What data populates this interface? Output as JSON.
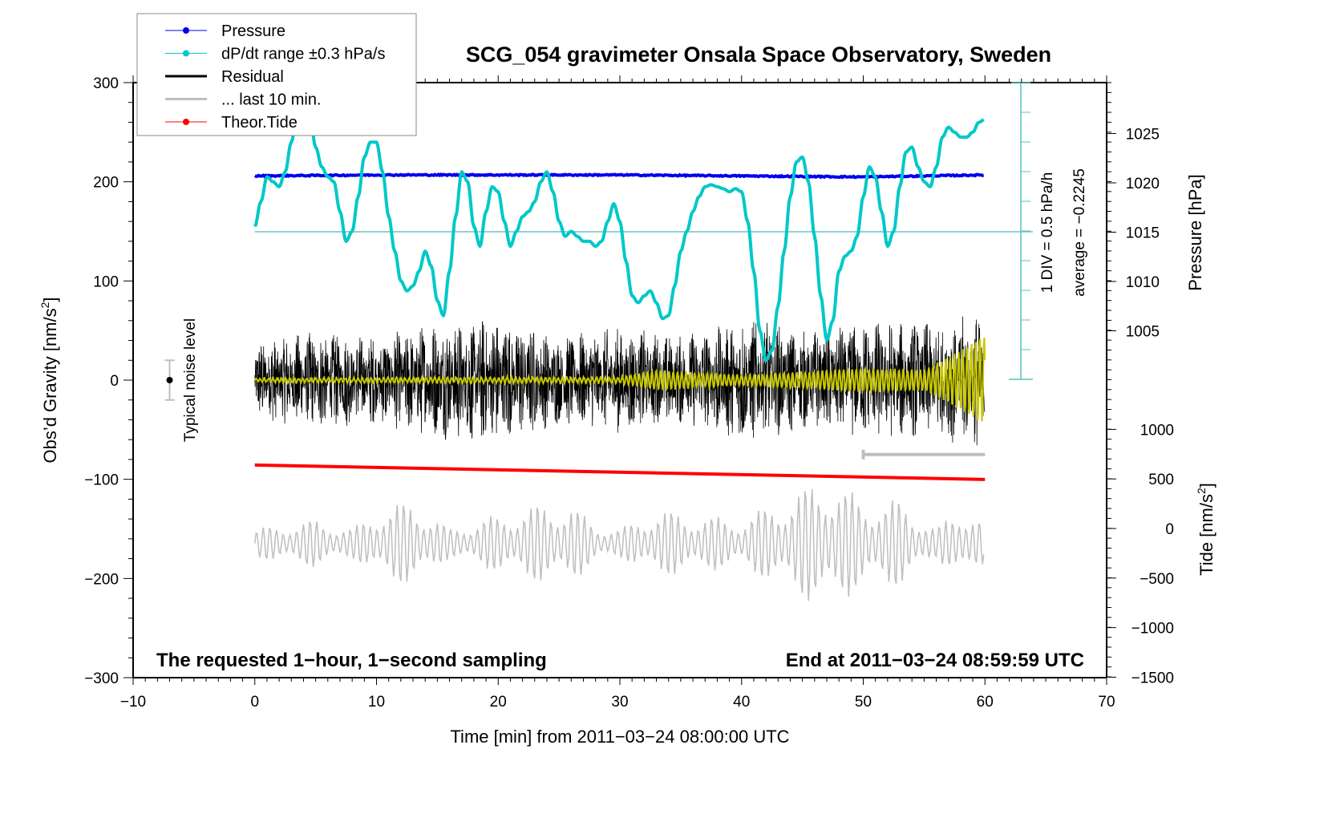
{
  "chart_data": {
    "type": "line",
    "title": "SCG_054 gravimeter Onsala Space Observatory, Sweden",
    "xlabel": "Time [min] from 2011−03−24 08:00:00 UTC",
    "xlim": [
      -10,
      70
    ],
    "x_ticks": [
      -10,
      0,
      10,
      20,
      30,
      40,
      50,
      60,
      70
    ],
    "x_tick_labels": [
      "−10",
      "0",
      "10",
      "20",
      "30",
      "40",
      "50",
      "60",
      "70"
    ],
    "left_axis": {
      "label": "Obs’d Gravity [nm/s",
      "label_sup": "2",
      "label_end": "]",
      "ylim": [
        -300,
        300
      ],
      "ticks": [
        300,
        200,
        100,
        0,
        -100,
        -200,
        -300
      ],
      "tick_labels": [
        "300",
        "200",
        "100",
        "0",
        "−100",
        "−200",
        "−300"
      ]
    },
    "pressure_axis": {
      "label": "Pressure [hPa]",
      "ticks": [
        1025,
        1020,
        1015,
        1010,
        1005
      ],
      "tick_labels": [
        "1025",
        "1020",
        "1015",
        "1010",
        "1005"
      ]
    },
    "tide_axis": {
      "label": "Tide [nm/s",
      "label_sup": "2",
      "label_end": "]",
      "ticks": [
        1000,
        500,
        0,
        -500,
        -1000,
        -1500
      ],
      "tick_labels": [
        "1000",
        "500",
        "0",
        "−500",
        "−1000",
        "−1500"
      ]
    },
    "dpdt_axis": {
      "div_label": "1 DIV = 0.5 hPa/h",
      "average_label": "average = −0.2245",
      "average": -0.2245,
      "hpa_per_div": 0.5
    },
    "legend": {
      "placement": "top-left",
      "items": [
        {
          "label": "Pressure",
          "color": "#0000ee",
          "marker": true
        },
        {
          "label": "dP/dt range ±0.3 hPa/s",
          "color": "#00c8c8",
          "marker": true
        },
        {
          "label": "Residual",
          "color": "#000000",
          "marker": false
        },
        {
          "label": "... last 10 min.",
          "color": "#bebebe",
          "marker": false
        },
        {
          "label": "Theor.Tide",
          "color": "#ff0000",
          "marker": true
        }
      ]
    },
    "noise_level": {
      "label": "Typical noise level",
      "x": -7,
      "center": 0,
      "half_range": 20
    },
    "annotations": {
      "bottom_left": "The requested 1−hour, 1−second sampling",
      "bottom_right": "End at 2011−03−24 08:59:59 UTC"
    },
    "series": [
      {
        "name": "Pressure",
        "color": "#0000ee",
        "axis": "pressure",
        "x": [
          0,
          10,
          20,
          30,
          40,
          50,
          60
        ],
        "values": [
          1020.7,
          1020.8,
          1020.8,
          1020.8,
          1020.7,
          1020.6,
          1020.8
        ]
      },
      {
        "name": "dP/dt",
        "color": "#00c8c8",
        "axis": "left",
        "x": [
          0,
          0.5,
          1,
          1.5,
          2,
          2.5,
          3,
          3.5,
          4,
          4.5,
          5,
          5.5,
          6,
          6.5,
          7,
          7.5,
          8,
          8.5,
          9,
          9.5,
          10,
          10.5,
          11,
          11.5,
          12,
          12.5,
          13,
          13.5,
          14,
          14.5,
          15,
          15.5,
          16,
          16.5,
          17,
          17.5,
          18,
          18.5,
          19,
          19.5,
          20,
          20.5,
          21,
          21.5,
          22,
          22.5,
          23,
          23.5,
          24,
          24.5,
          25,
          25.5,
          26,
          26.5,
          27,
          27.5,
          28,
          28.5,
          29,
          29.5,
          30,
          30.5,
          31,
          31.5,
          32,
          32.5,
          33,
          33.5,
          34,
          34.5,
          35,
          35.5,
          36,
          36.5,
          37,
          37.5,
          38,
          38.5,
          39,
          39.5,
          40,
          40.5,
          41,
          41.5,
          42,
          42.5,
          43,
          43.5,
          44,
          44.5,
          45,
          45.5,
          46,
          46.5,
          47,
          47.5,
          48,
          48.5,
          49,
          49.5,
          50,
          50.5,
          51,
          51.5,
          52,
          52.5,
          53,
          53.5,
          54,
          54.5,
          55,
          55.5,
          56,
          56.5,
          57,
          57.5,
          58,
          58.5,
          59,
          59.5,
          60
        ],
        "values": [
          155,
          180,
          205,
          200,
          195,
          210,
          240,
          270,
          285,
          270,
          235,
          215,
          205,
          200,
          170,
          140,
          150,
          185,
          225,
          240,
          240,
          210,
          165,
          130,
          100,
          90,
          95,
          110,
          130,
          115,
          80,
          65,
          110,
          165,
          210,
          200,
          155,
          135,
          170,
          195,
          190,
          160,
          135,
          150,
          165,
          170,
          180,
          200,
          210,
          190,
          160,
          145,
          150,
          145,
          140,
          140,
          135,
          140,
          160,
          178,
          160,
          120,
          85,
          78,
          85,
          90,
          78,
          62,
          65,
          95,
          130,
          150,
          170,
          185,
          195,
          197,
          195,
          193,
          190,
          193,
          190,
          160,
          110,
          50,
          20,
          30,
          75,
          130,
          185,
          220,
          225,
          200,
          145,
          85,
          40,
          60,
          110,
          125,
          130,
          145,
          185,
          215,
          205,
          170,
          135,
          150,
          195,
          230,
          235,
          215,
          200,
          195,
          215,
          245,
          255,
          250,
          245,
          245,
          250,
          260,
          263
        ]
      },
      {
        "name": "Residual",
        "color": "#000000",
        "axis": "left",
        "envelope_x": [
          0,
          5,
          10,
          15,
          20,
          25,
          30,
          35,
          40,
          45,
          50,
          55,
          60
        ],
        "envelope_amplitude": [
          40,
          50,
          45,
          60,
          65,
          45,
          55,
          45,
          65,
          50,
          60,
          60,
          70
        ]
      },
      {
        "name": "... last 10 min.",
        "color": "#bebebe",
        "axis": "left",
        "x_range": [
          50,
          60
        ],
        "values_level": -75
      },
      {
        "name": "Smoothed residual",
        "color": "#c8c800",
        "axis": "left",
        "envelope_x": [
          0,
          30,
          33,
          40,
          45,
          50,
          55,
          58,
          60
        ],
        "envelope_amplitude": [
          2,
          3,
          10,
          5,
          8,
          12,
          10,
          30,
          45
        ]
      },
      {
        "name": "Theor.Tide",
        "color": "#ff0000",
        "axis": "tide",
        "x": [
          0,
          60
        ],
        "values": [
          640,
          495
        ]
      },
      {
        "name": "Tide (grey oscillation)",
        "color": "#bebebe",
        "axis": "tide",
        "envelope_x": [
          0,
          5,
          8,
          10,
          13,
          16,
          20,
          24,
          26,
          28,
          30,
          33,
          36,
          40,
          44,
          47,
          50,
          53,
          56,
          58,
          60
        ],
        "envelope_amplitude": [
          150,
          250,
          150,
          350,
          450,
          150,
          300,
          420,
          400,
          200,
          150,
          350,
          300,
          250,
          500,
          700,
          450,
          450,
          150,
          400,
          200
        ]
      }
    ]
  }
}
